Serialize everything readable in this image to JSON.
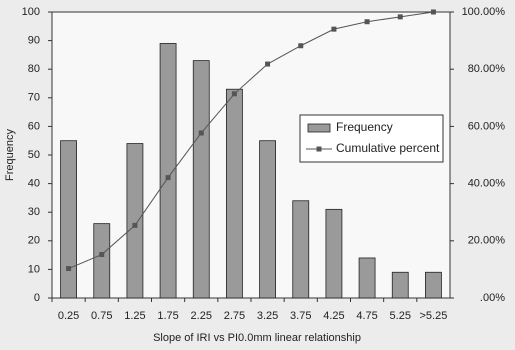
{
  "chart_data": {
    "type": "bar",
    "categories": [
      "0.25",
      "0.75",
      "1.25",
      "1.75",
      "2.25",
      "2.75",
      "3.25",
      "3.75",
      "4.25",
      "4.75",
      "5.25",
      ">5.25"
    ],
    "series": [
      {
        "name": "Frequency",
        "color": "#9a9a9a",
        "values": [
          55,
          26,
          54,
          89,
          83,
          73,
          55,
          34,
          31,
          14,
          9,
          9
        ]
      },
      {
        "name": "Cumulative percent",
        "color": "#555555",
        "axis": "y2",
        "type": "line",
        "values": [
          10.3,
          15.2,
          25.4,
          42.1,
          57.7,
          71.4,
          81.8,
          88.2,
          94.0,
          96.6,
          98.3,
          100
        ]
      }
    ],
    "x_label": "Slope of IRI vs PI0.0mm linear relationship",
    "y_label": "Frequency",
    "ylim": [
      0,
      100
    ],
    "yticks": [
      0,
      10,
      20,
      30,
      40,
      50,
      60,
      70,
      80,
      90,
      100
    ],
    "y2lim": [
      0,
      100
    ],
    "y2ticks": [
      {
        "value": 0,
        "label": ".00%"
      },
      {
        "value": 20,
        "label": "20.00%"
      },
      {
        "value": 40,
        "label": "40.00%"
      },
      {
        "value": 60,
        "label": "60.00%"
      },
      {
        "value": 80,
        "label": "80.00%"
      },
      {
        "value": 100,
        "label": "100.00%"
      }
    ],
    "grid": false,
    "legend": "right"
  }
}
